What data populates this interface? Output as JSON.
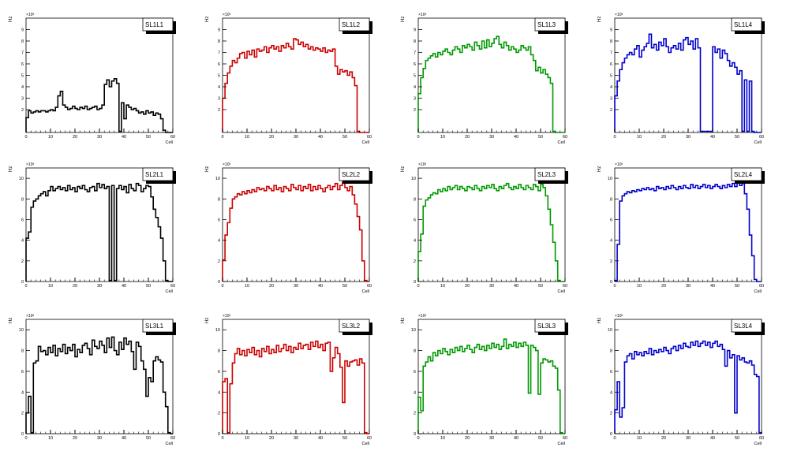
{
  "colors": {
    "black": "#000000",
    "red": "#cc0000",
    "green": "#009900",
    "blue": "#0000cc"
  },
  "chart_data": [
    {
      "type": "histogram",
      "title": "SL1L1",
      "xlabel": "Cell",
      "ylabel": "Hz",
      "exponent": "×10³",
      "xlim": [
        0,
        60
      ],
      "ylim": [
        0,
        10
      ],
      "xticks": [
        0,
        10,
        20,
        30,
        40,
        50,
        60
      ],
      "yticks": [
        2,
        3,
        4,
        5,
        6,
        7,
        8,
        9
      ],
      "color": "black",
      "values": [
        1.3,
        1.9,
        1.7,
        1.8,
        1.9,
        1.8,
        1.9,
        1.9,
        1.8,
        1.9,
        2.0,
        1.9,
        2.2,
        3.2,
        3.6,
        2.4,
        2.2,
        2.0,
        2.1,
        2.3,
        2.1,
        2.0,
        2.2,
        2.1,
        2.3,
        2.0,
        2.1,
        2.2,
        2.3,
        2.0,
        2.1,
        2.4,
        4.2,
        4.6,
        4.0,
        4.5,
        4.7,
        4.3,
        0.1,
        2.6,
        1.2,
        2.4,
        2.2,
        2.0,
        2.1,
        1.9,
        1.7,
        1.8,
        1.6,
        1.9,
        1.7,
        1.8,
        1.5,
        1.7,
        1.6,
        1.2,
        0.2,
        0,
        0,
        0
      ]
    },
    {
      "type": "histogram",
      "title": "SL1L2",
      "xlabel": "Cell",
      "ylabel": "Hz",
      "exponent": "×10³",
      "xlim": [
        0,
        60
      ],
      "ylim": [
        0,
        10
      ],
      "xticks": [
        0,
        10,
        20,
        30,
        40,
        50,
        60
      ],
      "yticks": [
        2,
        3,
        4,
        5,
        6,
        7,
        8,
        9
      ],
      "color": "red",
      "values": [
        3.0,
        4.3,
        5.2,
        5.8,
        6.3,
        6.1,
        6.5,
        6.9,
        7.0,
        6.5,
        7.1,
        6.8,
        7.2,
        6.6,
        7.3,
        7.1,
        7.2,
        7.5,
        7.0,
        7.4,
        7.6,
        7.3,
        7.5,
        7.1,
        7.6,
        7.4,
        7.8,
        7.5,
        7.3,
        8.2,
        8.1,
        7.7,
        7.9,
        7.5,
        7.7,
        7.3,
        7.5,
        7.2,
        7.4,
        7.3,
        7.1,
        7.4,
        7.0,
        7.2,
        7.1,
        7.3,
        5.8,
        5.1,
        5.5,
        5.3,
        5.4,
        5.0,
        5.3,
        4.8,
        4.1,
        0.1,
        0,
        0,
        0,
        0
      ]
    },
    {
      "type": "histogram",
      "title": "SL1L3",
      "xlabel": "Cell",
      "ylabel": "Hz",
      "exponent": "×10³",
      "xlim": [
        0,
        60
      ],
      "ylim": [
        0,
        10
      ],
      "xticks": [
        0,
        10,
        20,
        30,
        40,
        50,
        60
      ],
      "yticks": [
        2,
        3,
        4,
        5,
        6,
        7,
        8,
        9
      ],
      "color": "green",
      "values": [
        3.4,
        4.8,
        5.6,
        6.3,
        6.5,
        6.7,
        6.9,
        6.6,
        7.0,
        6.8,
        7.1,
        7.3,
        7.0,
        6.8,
        7.2,
        7.5,
        7.3,
        7.0,
        7.6,
        7.4,
        7.7,
        7.5,
        7.2,
        7.9,
        7.6,
        7.3,
        8.0,
        7.4,
        8.1,
        7.5,
        7.8,
        8.2,
        8.4,
        7.7,
        7.4,
        7.9,
        7.6,
        7.2,
        7.5,
        7.3,
        7.0,
        7.2,
        7.6,
        7.4,
        7.2,
        7.5,
        6.8,
        6.3,
        5.4,
        5.7,
        5.2,
        5.5,
        5.1,
        4.8,
        4.3,
        0.1,
        0,
        0,
        0,
        0
      ]
    },
    {
      "type": "histogram",
      "title": "SL1L4",
      "xlabel": "Cell",
      "ylabel": "Hz",
      "exponent": "×10³",
      "xlim": [
        0,
        60
      ],
      "ylim": [
        0,
        10
      ],
      "xticks": [
        0,
        10,
        20,
        30,
        40,
        50,
        60
      ],
      "yticks": [
        2,
        3,
        4,
        5,
        6,
        7,
        8,
        9
      ],
      "color": "blue",
      "values": [
        3.2,
        4.5,
        5.5,
        6.1,
        6.5,
        6.8,
        7.0,
        6.8,
        7.3,
        7.6,
        6.6,
        7.2,
        7.5,
        7.8,
        8.6,
        7.4,
        7.7,
        7.2,
        7.9,
        7.6,
        8.2,
        7.5,
        7.0,
        7.4,
        7.6,
        7.3,
        7.8,
        7.2,
        8.1,
        8.3,
        7.7,
        8.0,
        7.3,
        8.2,
        7.4,
        0.1,
        0.1,
        0.1,
        0.1,
        0.1,
        7.5,
        7.0,
        7.3,
        6.5,
        7.2,
        6.9,
        6.3,
        5.8,
        6.1,
        5.7,
        5.1,
        5.4,
        0.1,
        4.6,
        0.1,
        4.5,
        0.1,
        0,
        0,
        0
      ]
    },
    {
      "type": "histogram",
      "title": "SL2L1",
      "xlabel": "Cell",
      "ylabel": "Hz",
      "exponent": "×10³",
      "xlim": [
        0,
        60
      ],
      "ylim": [
        0,
        11
      ],
      "xticks": [
        0,
        10,
        20,
        30,
        40,
        50,
        60
      ],
      "yticks": [
        0,
        2,
        4,
        6,
        8,
        10
      ],
      "color": "black",
      "values": [
        4.2,
        4.8,
        7.2,
        7.8,
        8.0,
        8.3,
        8.5,
        8.7,
        8.3,
        8.8,
        9.2,
        8.8,
        9.0,
        9.2,
        8.9,
        9.1,
        8.8,
        9.3,
        8.9,
        9.1,
        8.7,
        9.2,
        9.0,
        9.3,
        8.9,
        8.7,
        9.1,
        9.2,
        8.8,
        9.5,
        9.1,
        9.4,
        9.0,
        9.2,
        0.1,
        9.3,
        0.1,
        9.0,
        9.3,
        8.9,
        9.2,
        8.6,
        9.4,
        9.0,
        8.8,
        9.5,
        9.3,
        8.7,
        9.0,
        9.3,
        9.2,
        8.2,
        7.0,
        6.2,
        5.3,
        4.2,
        2.0,
        0.1,
        0,
        0
      ]
    },
    {
      "type": "histogram",
      "title": "SL2L2",
      "xlabel": "Cell",
      "ylabel": "Hz",
      "exponent": "×10³",
      "xlim": [
        0,
        60
      ],
      "ylim": [
        0,
        11
      ],
      "xticks": [
        0,
        10,
        20,
        30,
        40,
        50,
        60
      ],
      "yticks": [
        0,
        2,
        4,
        6,
        8,
        10
      ],
      "color": "red",
      "values": [
        2.1,
        4.5,
        5.7,
        7.1,
        8.0,
        8.2,
        8.5,
        8.4,
        8.7,
        8.5,
        8.8,
        8.6,
        8.9,
        8.7,
        9.1,
        8.9,
        9.0,
        8.8,
        9.2,
        9.0,
        8.8,
        9.3,
        8.9,
        9.1,
        8.7,
        9.2,
        9.0,
        8.8,
        9.4,
        9.1,
        8.9,
        9.3,
        8.8,
        9.2,
        9.0,
        9.4,
        8.8,
        9.2,
        8.9,
        9.3,
        9.0,
        8.7,
        9.1,
        9.3,
        8.9,
        9.2,
        9.5,
        8.9,
        9.3,
        9.6,
        9.1,
        8.8,
        9.2,
        8.4,
        7.5,
        6.3,
        5.0,
        2.0,
        0.1,
        0
      ]
    },
    {
      "type": "histogram",
      "title": "SL2L3",
      "xlabel": "Cell",
      "ylabel": "Hz",
      "exponent": "×10³",
      "xlim": [
        0,
        60
      ],
      "ylim": [
        0,
        11
      ],
      "xticks": [
        0,
        10,
        20,
        30,
        40,
        50,
        60
      ],
      "yticks": [
        0,
        2,
        4,
        6,
        8,
        10
      ],
      "color": "green",
      "values": [
        2.9,
        4.6,
        7.3,
        7.9,
        8.1,
        8.4,
        8.6,
        8.5,
        8.9,
        8.7,
        9.0,
        8.8,
        9.2,
        8.9,
        9.1,
        9.3,
        8.9,
        9.2,
        9.0,
        8.8,
        9.2,
        9.1,
        8.9,
        9.3,
        9.0,
        8.8,
        9.2,
        9.0,
        9.3,
        9.1,
        9.4,
        9.0,
        8.8,
        9.2,
        9.0,
        9.3,
        9.5,
        9.1,
        8.9,
        9.2,
        9.0,
        9.4,
        9.1,
        8.9,
        9.3,
        9.1,
        8.9,
        9.4,
        9.2,
        8.8,
        9.4,
        9.1,
        8.3,
        7.0,
        5.5,
        3.8,
        2.0,
        0.1,
        0,
        0
      ]
    },
    {
      "type": "histogram",
      "title": "SL2L4",
      "xlabel": "Cell",
      "ylabel": "Hz",
      "exponent": "×10³",
      "xlim": [
        0,
        60
      ],
      "ylim": [
        0,
        11
      ],
      "xticks": [
        0,
        10,
        20,
        30,
        40,
        50,
        60
      ],
      "yticks": [
        0,
        2,
        4,
        6,
        8,
        10
      ],
      "color": "blue",
      "values": [
        0.1,
        3.6,
        7.8,
        8.3,
        8.5,
        8.7,
        8.6,
        8.8,
        8.7,
        8.9,
        8.8,
        9.0,
        8.9,
        9.1,
        8.9,
        9.0,
        8.8,
        9.2,
        9.0,
        9.1,
        8.9,
        9.2,
        9.0,
        9.3,
        9.1,
        8.9,
        9.2,
        9.0,
        9.3,
        9.1,
        9.0,
        9.4,
        9.1,
        9.3,
        9.0,
        9.2,
        9.4,
        9.1,
        9.3,
        9.0,
        9.2,
        9.4,
        9.2,
        9.0,
        9.3,
        9.1,
        9.4,
        9.2,
        9.5,
        9.2,
        9.6,
        9.3,
        9.5,
        8.5,
        7.0,
        4.5,
        2.5,
        0.2,
        0,
        0
      ]
    },
    {
      "type": "histogram",
      "title": "SL3L1",
      "xlabel": "Cell",
      "ylabel": "Hz",
      "exponent": "×10³",
      "xlim": [
        0,
        60
      ],
      "ylim": [
        0,
        11
      ],
      "xticks": [
        0,
        10,
        20,
        30,
        40,
        50,
        60
      ],
      "yticks": [
        0,
        2,
        4,
        6,
        8,
        10
      ],
      "color": "black",
      "values": [
        2.0,
        3.6,
        0.1,
        6.8,
        7.0,
        8.4,
        7.9,
        8.0,
        7.6,
        8.3,
        7.8,
        8.5,
        7.5,
        8.2,
        7.9,
        8.6,
        7.7,
        8.3,
        8.0,
        8.6,
        7.4,
        8.1,
        7.8,
        8.5,
        8.7,
        8.2,
        7.6,
        9.0,
        8.4,
        8.2,
        8.9,
        8.5,
        7.8,
        9.2,
        8.3,
        9.3,
        8.0,
        7.6,
        8.8,
        8.1,
        9.2,
        8.6,
        8.9,
        7.9,
        6.2,
        8.8,
        8.4,
        7.0,
        6.2,
        3.6,
        5.4,
        5.0,
        7.0,
        7.4,
        7.1,
        6.9,
        4.0,
        2.6,
        0.1,
        0
      ]
    },
    {
      "type": "histogram",
      "title": "SL3L2",
      "xlabel": "Cell",
      "ylabel": "Hz",
      "exponent": "×10³",
      "xlim": [
        0,
        60
      ],
      "ylim": [
        0,
        11
      ],
      "xticks": [
        0,
        10,
        20,
        30,
        40,
        50,
        60
      ],
      "yticks": [
        0,
        2,
        4,
        6,
        8,
        10
      ],
      "color": "red",
      "values": [
        5.0,
        5.3,
        0.1,
        4.8,
        6.8,
        7.7,
        8.2,
        7.6,
        8.0,
        7.5,
        8.1,
        7.8,
        8.3,
        7.6,
        8.0,
        7.4,
        8.2,
        7.9,
        8.4,
        7.7,
        8.1,
        7.8,
        8.5,
        7.9,
        8.2,
        8.6,
        8.0,
        8.4,
        7.8,
        8.3,
        8.1,
        8.7,
        8.2,
        8.5,
        8.6,
        8.1,
        8.8,
        8.4,
        8.9,
        8.3,
        8.6,
        8.0,
        8.7,
        8.8,
        6.0,
        7.3,
        8.3,
        7.7,
        6.4,
        3.0,
        7.0,
        6.5,
        6.9,
        7.0,
        7.1,
        6.6,
        7.2,
        6.8,
        0.1,
        0
      ]
    },
    {
      "type": "histogram",
      "title": "SL3L3",
      "xlabel": "Cell",
      "ylabel": "Hz",
      "exponent": "×10³",
      "xlim": [
        0,
        60
      ],
      "ylim": [
        0,
        11
      ],
      "xticks": [
        0,
        10,
        20,
        30,
        40,
        50,
        60
      ],
      "yticks": [
        0,
        2,
        4,
        6,
        8,
        10
      ],
      "color": "green",
      "values": [
        3.5,
        2.2,
        6.5,
        6.9,
        7.4,
        7.0,
        7.8,
        7.5,
        8.0,
        7.7,
        8.2,
        7.9,
        7.6,
        8.1,
        7.8,
        8.3,
        8.0,
        8.4,
        7.9,
        8.2,
        8.5,
        8.1,
        7.8,
        8.3,
        8.6,
        8.1,
        8.4,
        8.0,
        8.5,
        8.2,
        8.7,
        8.3,
        8.6,
        8.1,
        8.4,
        9.1,
        8.2,
        8.6,
        8.4,
        8.8,
        8.3,
        8.7,
        8.4,
        8.8,
        8.5,
        3.9,
        8.5,
        8.3,
        8.0,
        3.8,
        6.8,
        7.2,
        7.1,
        6.9,
        7.0,
        6.5,
        6.3,
        4.2,
        0.1,
        0
      ]
    },
    {
      "type": "histogram",
      "title": "SL3L4",
      "xlabel": "Cell",
      "ylabel": "Hz",
      "exponent": "×10³",
      "xlim": [
        0,
        60
      ],
      "ylim": [
        0,
        11
      ],
      "xticks": [
        0,
        10,
        20,
        30,
        40,
        50,
        60
      ],
      "yticks": [
        0,
        2,
        4,
        6,
        8,
        10
      ],
      "color": "blue",
      "values": [
        2.3,
        5.0,
        1.6,
        2.5,
        6.9,
        7.5,
        7.7,
        7.2,
        7.9,
        7.6,
        7.8,
        7.5,
        7.9,
        7.7,
        8.2,
        7.6,
        8.0,
        7.8,
        8.1,
        7.9,
        8.3,
        8.0,
        7.7,
        8.2,
        8.4,
        8.0,
        8.5,
        8.2,
        8.7,
        8.4,
        8.3,
        8.8,
        8.5,
        8.9,
        8.4,
        8.7,
        8.9,
        8.5,
        8.8,
        8.3,
        8.7,
        8.9,
        8.4,
        8.6,
        8.1,
        6.5,
        8.0,
        7.3,
        7.6,
        2.0,
        7.5,
        7.1,
        7.3,
        6.9,
        6.8,
        7.0,
        6.6,
        5.7,
        5.5,
        0.1
      ]
    }
  ]
}
